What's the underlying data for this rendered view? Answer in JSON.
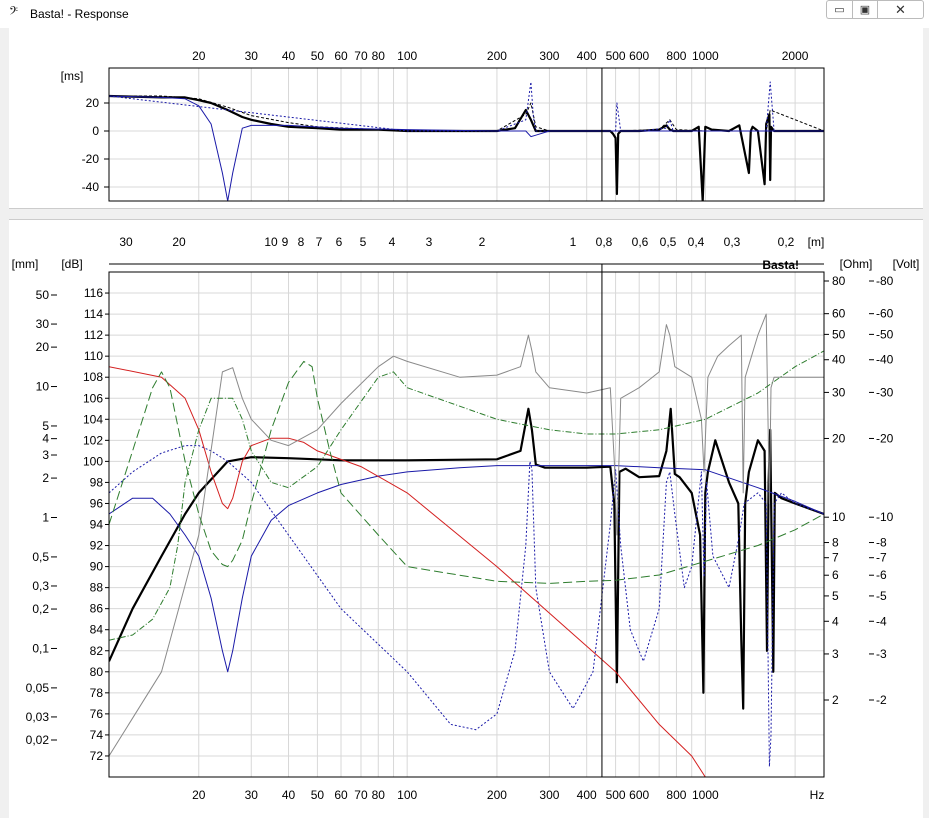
{
  "window": {
    "title": "Basta! - Response",
    "icon": "bass-clef-icon",
    "buttons": {
      "minimize": "▭",
      "maximize": "▣",
      "close": "✕"
    }
  },
  "colors": {
    "black": "#000000",
    "blue": "#1a1aa8",
    "red": "#d42020",
    "green": "#2e7d2e",
    "gray": "#8a8a8a",
    "grid": "#d8d8d8"
  },
  "chart_data": [
    {
      "type": "line",
      "title": "",
      "ylabel": "[ms]",
      "xscale": "log",
      "xlim": [
        10,
        2500
      ],
      "ylim": [
        -50,
        45
      ],
      "x_ticks": [
        20,
        30,
        40,
        50,
        60,
        70,
        80,
        100,
        200,
        300,
        400,
        500,
        600,
        800,
        1000,
        2000
      ],
      "x_tick_labels": [
        "20",
        "30",
        "40",
        "50",
        "60",
        "70",
        "80",
        "100",
        "200",
        "300",
        "400",
        "500",
        "600",
        "800",
        "1000",
        "2000"
      ],
      "y_ticks": [
        20,
        0,
        -20,
        -40
      ],
      "y_tick_labels": [
        "20",
        "0",
        "-20",
        "-40"
      ],
      "cursor_hz": 450,
      "series": [
        {
          "style": "black-thick",
          "x": [
            10,
            15,
            18,
            20,
            22,
            25,
            28,
            30,
            35,
            40,
            50,
            60,
            80,
            100,
            150,
            200,
            230,
            250,
            260,
            270,
            300,
            400,
            480,
            490,
            500,
            505,
            510,
            520,
            600,
            700,
            740,
            760,
            780,
            900,
            950,
            980,
            1000,
            1050,
            1200,
            1300,
            1400,
            1420,
            1440,
            1500,
            1580,
            1600,
            1640,
            1650,
            1660,
            1700,
            1800,
            2500
          ],
          "y": [
            25,
            24,
            24,
            22,
            20,
            15,
            10,
            8,
            5,
            3,
            2,
            1,
            1,
            0,
            0,
            0,
            2,
            15,
            8,
            0,
            0,
            0,
            0,
            -2,
            -5,
            -45,
            -2,
            0,
            0,
            1,
            4,
            1,
            0,
            0,
            3,
            -50,
            3,
            1,
            0,
            4,
            -30,
            0,
            3,
            0,
            -38,
            5,
            12,
            -35,
            3,
            0,
            0,
            0
          ]
        },
        {
          "style": "black-dashed",
          "x": [
            10,
            15,
            20,
            25,
            30,
            40,
            50,
            80,
            100,
            200,
            250,
            260,
            270,
            300,
            500,
            700,
            760,
            800,
            1000,
            1600,
            1650,
            2500
          ],
          "y": [
            25,
            25,
            23,
            17,
            11,
            6,
            3,
            1,
            0,
            0,
            12,
            20,
            3,
            0,
            0,
            1,
            8,
            1,
            0,
            0,
            15,
            0
          ]
        },
        {
          "style": "blue-solid",
          "x": [
            10,
            15,
            18,
            20,
            22,
            24,
            25,
            26,
            28,
            30,
            40,
            60,
            100,
            200,
            250,
            260,
            270,
            300,
            500,
            2500
          ],
          "y": [
            25,
            24,
            23,
            18,
            5,
            -30,
            -50,
            -30,
            2,
            4,
            4,
            2,
            1,
            0,
            0,
            -4,
            -3,
            0,
            0,
            0
          ]
        },
        {
          "style": "blue-dotted",
          "x": [
            10,
            100,
            200,
            250,
            260,
            265,
            270,
            300,
            500,
            505,
            520,
            600,
            740,
            760,
            780,
            1000,
            1600,
            1650,
            1700,
            2500
          ],
          "y": [
            25,
            0,
            0,
            8,
            35,
            10,
            0,
            0,
            0,
            20,
            0,
            0,
            2,
            8,
            0,
            0,
            0,
            35,
            0,
            0
          ]
        }
      ]
    },
    {
      "type": "line",
      "title": "",
      "ylabel_left_mm": "[mm]",
      "ylabel_left_db": "[dB]",
      "ylabel_right_ohm": "[Ohm]",
      "ylabel_right_volt": "[Volt]",
      "xlabel": "Hz",
      "top_axis_label": "[m]",
      "watermark": "Basta!",
      "xscale": "log",
      "xlim": [
        10,
        2500
      ],
      "ylim": [
        70,
        118
      ],
      "x_ticks": [
        20,
        30,
        40,
        50,
        60,
        70,
        80,
        100,
        200,
        300,
        400,
        500,
        600,
        800,
        1000
      ],
      "x_tick_labels": [
        "20",
        "30",
        "40",
        "50",
        "60",
        "70",
        "80",
        "100",
        "200",
        "300",
        "400",
        "500",
        "600",
        "800",
        "1000"
      ],
      "top_ticks_m": [
        "30",
        "20",
        "10",
        "9",
        "8",
        "7",
        "6",
        "5",
        "4",
        "3",
        "2",
        "1",
        "0,8",
        "0,6",
        "0,5",
        "0,4",
        "0,3",
        "0,2"
      ],
      "db_ticks": [
        116,
        114,
        112,
        110,
        108,
        106,
        104,
        102,
        100,
        98,
        96,
        94,
        92,
        90,
        88,
        86,
        84,
        82,
        80,
        78,
        76,
        74,
        72
      ],
      "mm_ticks": [
        "50",
        "30",
        "20",
        "10",
        "5",
        "4",
        "3",
        "2",
        "1",
        "0,5",
        "0,3",
        "0,2",
        "0,1",
        "0,05",
        "0,03",
        "0,02"
      ],
      "ohm_ticks": [
        "80",
        "60",
        "50",
        "40",
        "30",
        "20",
        "10",
        "8",
        "7",
        "6",
        "5",
        "4",
        "3",
        "2"
      ],
      "volt_ticks": [
        "-80",
        "-60",
        "-50",
        "-40",
        "-30",
        "-20",
        "-10",
        "-8",
        "-7",
        "-6",
        "-5",
        "-4",
        "-3",
        "-2"
      ],
      "cursor_hz": 450,
      "series": [
        {
          "style": "black-thick",
          "x": [
            10,
            12,
            15,
            18,
            20,
            25,
            30,
            40,
            60,
            100,
            200,
            240,
            255,
            262,
            270,
            290,
            400,
            480,
            495,
            505,
            515,
            540,
            600,
            700,
            740,
            765,
            790,
            820,
            900,
            960,
            985,
            1000,
            1020,
            1080,
            1200,
            1290,
            1320,
            1340,
            1360,
            1400,
            1500,
            1580,
            1610,
            1630,
            1650,
            1690,
            1710,
            1800,
            2000,
            2500
          ],
          "y": [
            81,
            86,
            91,
            95,
            97,
            100,
            100.4,
            100.3,
            100.1,
            100.1,
            100.2,
            101,
            105,
            103,
            99.7,
            99.4,
            99.4,
            99.5,
            96,
            79,
            99,
            99.3,
            98.5,
            98.6,
            101,
            105,
            98.8,
            98.5,
            97,
            93,
            78,
            97,
            99,
            102,
            98,
            96,
            83,
            76.5,
            96,
            99,
            102,
            101,
            82,
            98,
            103,
            80,
            97,
            96.5,
            96,
            95
          ]
        },
        {
          "style": "blue-solid",
          "x": [
            10,
            12,
            14,
            16,
            18,
            20,
            22,
            24,
            25,
            26,
            28,
            30,
            35,
            40,
            50,
            60,
            80,
            100,
            150,
            200,
            300,
            400,
            500,
            700,
            1000,
            1500,
            2000,
            2500
          ],
          "y": [
            95,
            96.5,
            96.5,
            95,
            93,
            91,
            87,
            82,
            80,
            82,
            87,
            91,
            94.4,
            95.8,
            97,
            97.8,
            98.6,
            99,
            99.4,
            99.6,
            99.6,
            99.6,
            99.6,
            99.4,
            99.2,
            97.5,
            96.2,
            95
          ]
        },
        {
          "style": "blue-dotted",
          "x": [
            10,
            12,
            15,
            18,
            20,
            22,
            25,
            30,
            40,
            60,
            100,
            140,
            170,
            200,
            230,
            250,
            258,
            262,
            270,
            300,
            360,
            420,
            480,
            500,
            520,
            560,
            620,
            700,
            740,
            760,
            790,
            850,
            900,
            970,
            990,
            1010,
            1060,
            1200,
            1300,
            1350,
            1500,
            1600,
            1640,
            1660,
            1700,
            1800,
            2000,
            2500
          ],
          "y": [
            97,
            99,
            100.8,
            101.5,
            101.5,
            101,
            100,
            98,
            93,
            86,
            80,
            75,
            74.5,
            76,
            82,
            92,
            100,
            99.3,
            88,
            80,
            76.5,
            80,
            94,
            99.2,
            92,
            84,
            81,
            86,
            98,
            99,
            95,
            88,
            90,
            99,
            89,
            98,
            91,
            88,
            93,
            96,
            97,
            96,
            71,
            74,
            96,
            97,
            96,
            95
          ]
        },
        {
          "style": "red-solid",
          "x": [
            10,
            15,
            18,
            20,
            22,
            24,
            25,
            26,
            28,
            30,
            35,
            40,
            45,
            50,
            70,
            100,
            200,
            500,
            700,
            900,
            1000,
            2500
          ],
          "y": [
            109,
            108,
            106,
            103,
            99,
            96,
            95.5,
            96.5,
            100,
            101.5,
            102.2,
            102.2,
            101.8,
            101,
            99.5,
            97,
            90,
            80,
            75,
            72,
            70,
            70
          ]
        },
        {
          "style": "gray-solid",
          "x": [
            10,
            15,
            20,
            24,
            26,
            28,
            30,
            35,
            40,
            50,
            60,
            80,
            90,
            100,
            150,
            200,
            240,
            255,
            262,
            270,
            300,
            400,
            480,
            495,
            505,
            520,
            600,
            700,
            740,
            760,
            790,
            900,
            970,
            990,
            1020,
            1100,
            1200,
            1320,
            1340,
            1360,
            1500,
            1600,
            1640,
            1660,
            1700,
            2000,
            2500
          ],
          "y": [
            72,
            80,
            93,
            108.5,
            108.9,
            106,
            104,
            102,
            101.5,
            103,
            105.5,
            109,
            110,
            109.5,
            108,
            108.2,
            109,
            112,
            110.5,
            108.5,
            107,
            106.5,
            107,
            100,
            93,
            106,
            107,
            108.5,
            113,
            112,
            109,
            108,
            104,
            99,
            108,
            110,
            111,
            112,
            97,
            108,
            112,
            114,
            96,
            107,
            108,
            108,
            108
          ]
        },
        {
          "style": "green-dashdot",
          "x": [
            10,
            12,
            14,
            16,
            17,
            18,
            20,
            22,
            24,
            25,
            26,
            28,
            30,
            35,
            40,
            50,
            60,
            80,
            90,
            100,
            200,
            300,
            400,
            500,
            700,
            1000,
            1500,
            2000,
            2500
          ],
          "y": [
            83,
            83.5,
            85,
            88,
            92,
            98,
            103,
            106,
            106,
            106,
            106,
            104,
            101,
            98,
            97.5,
            99.5,
            103,
            108,
            108.5,
            107,
            104,
            103,
            102.6,
            102.6,
            103,
            104,
            106.5,
            109,
            110.5
          ]
        },
        {
          "style": "green-longdash",
          "x": [
            10,
            12,
            14,
            15,
            16,
            18,
            20,
            22,
            24,
            25,
            26,
            28,
            30,
            35,
            40,
            45,
            48,
            50,
            55,
            60,
            80,
            100,
            200,
            300,
            400,
            500,
            700,
            1000,
            1500,
            2000,
            2500
          ],
          "y": [
            94,
            101,
            107,
            108.5,
            107,
            100,
            95,
            91.5,
            90.2,
            90,
            90.6,
            92.5,
            96,
            103,
            107.5,
            109.5,
            109,
            106,
            101,
            97,
            93,
            90,
            88.6,
            88.4,
            88.6,
            88.7,
            89.2,
            90.5,
            92,
            93.5,
            95
          ]
        }
      ]
    }
  ]
}
